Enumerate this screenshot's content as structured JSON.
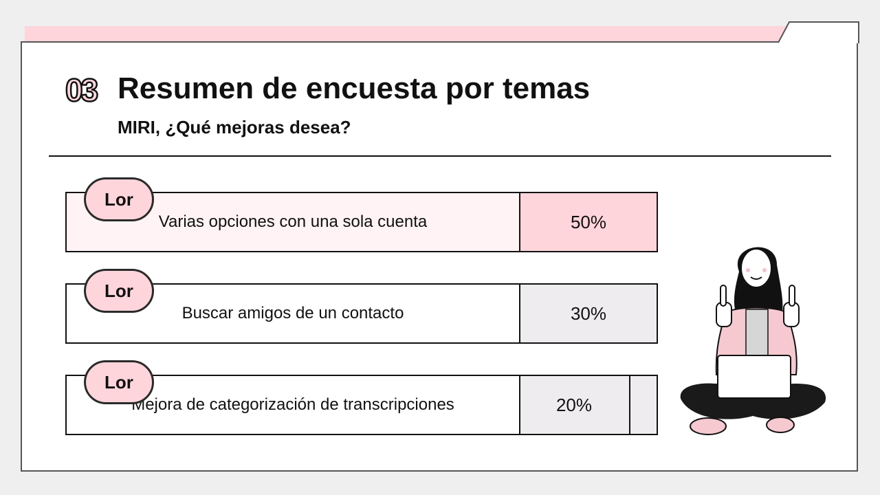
{
  "slide": {
    "number": "03",
    "title": "Resumen de encuesta por temas",
    "subtitle": "MIRI, ¿Qué mejoras desea?"
  },
  "rows": [
    {
      "tag": "Lor",
      "label": "Varias opciones con una sola cuenta",
      "percent": "50%",
      "fill": "#ffd5dc",
      "label_fill": "#fff3f5"
    },
    {
      "tag": "Lor",
      "label": "Buscar amigos de un contacto",
      "percent": "30%",
      "fill": "#eeecee",
      "label_fill": "#ffffff"
    },
    {
      "tag": "Lor",
      "label": "Mejora de categorización de transcripciones",
      "percent": "20%",
      "fill": "#eeecee",
      "label_fill": "#ffffff"
    }
  ],
  "colors": {
    "accent": "#ffd5dc",
    "border": "#111111"
  },
  "illustration": "woman-with-laptop-thumbs-up"
}
